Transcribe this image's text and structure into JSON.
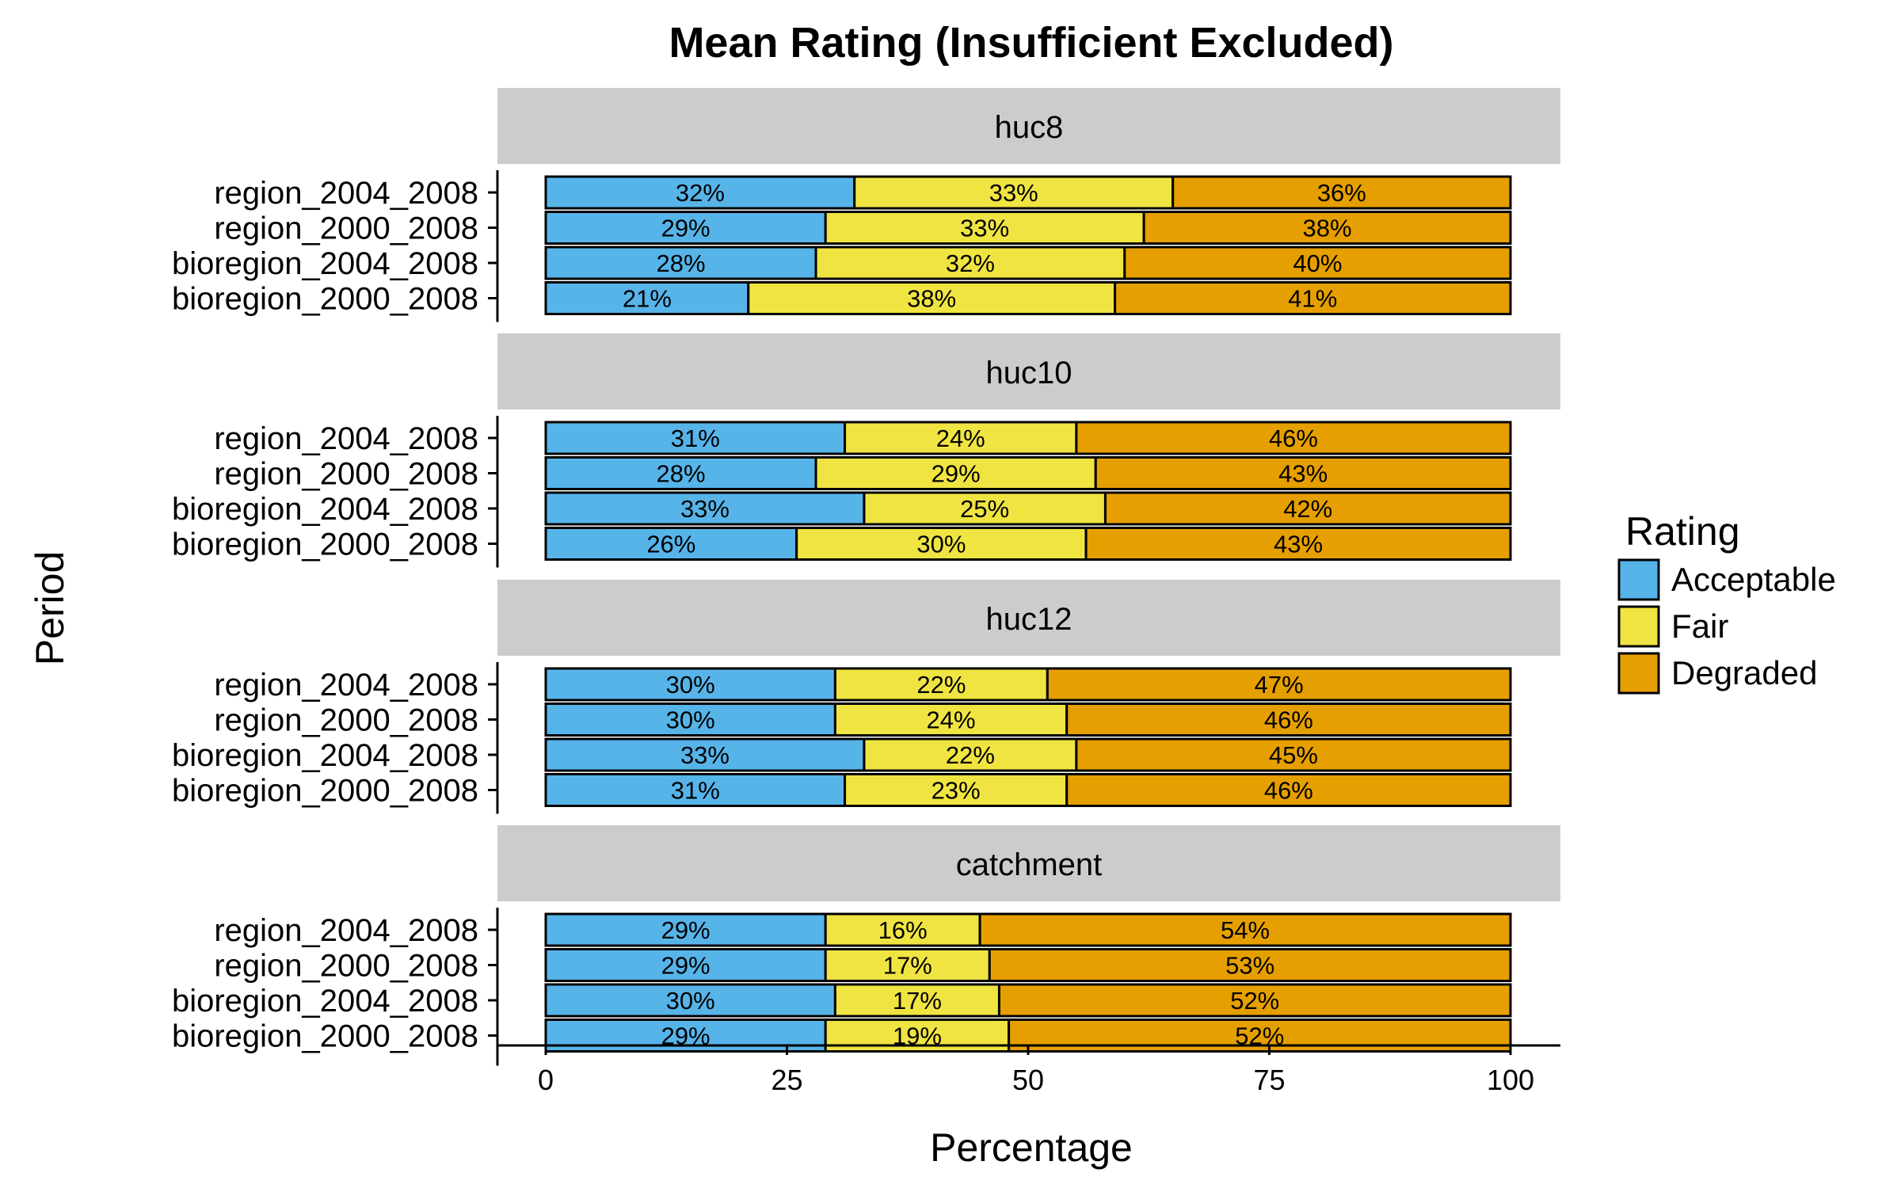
{
  "chart_data": {
    "type": "bar",
    "orientation": "horizontal",
    "stacked": true,
    "title": "Mean Rating (Insufficient Excluded)",
    "xlabel": "Percentage",
    "ylabel": "Period",
    "xlim": [
      0,
      100
    ],
    "xticks": [
      "0",
      "25",
      "50",
      "75",
      "100"
    ],
    "grid": false,
    "legend": {
      "title": "Rating",
      "position": "right",
      "entries": [
        "Acceptable",
        "Fair",
        "Degraded"
      ]
    },
    "colors": {
      "Acceptable": "#56B4E9",
      "Fair": "#F0E442",
      "Degraded": "#E69F00",
      "strip": "#cccccc"
    },
    "categories": [
      "region_2004_2008",
      "region_2000_2008",
      "bioregion_2004_2008",
      "bioregion_2000_2008"
    ],
    "panels": [
      {
        "name": "huc8",
        "series": [
          {
            "name": "Acceptable",
            "values": [
              32,
              29,
              28,
              21
            ],
            "labels": [
              "32%",
              "29%",
              "28%",
              "21%"
            ]
          },
          {
            "name": "Fair",
            "values": [
              33,
              33,
              32,
              38
            ],
            "labels": [
              "33%",
              "33%",
              "32%",
              "38%"
            ]
          },
          {
            "name": "Degraded",
            "values": [
              36,
              38,
              40,
              41
            ],
            "labels": [
              "36%",
              "38%",
              "40%",
              "41%"
            ]
          }
        ]
      },
      {
        "name": "huc10",
        "series": [
          {
            "name": "Acceptable",
            "values": [
              31,
              28,
              33,
              26
            ],
            "labels": [
              "31%",
              "28%",
              "33%",
              "26%"
            ]
          },
          {
            "name": "Fair",
            "values": [
              24,
              29,
              25,
              30
            ],
            "labels": [
              "24%",
              "29%",
              "25%",
              "30%"
            ]
          },
          {
            "name": "Degraded",
            "values": [
              46,
              43,
              42,
              43
            ],
            "labels": [
              "46%",
              "43%",
              "42%",
              "43%"
            ]
          }
        ]
      },
      {
        "name": "huc12",
        "series": [
          {
            "name": "Acceptable",
            "values": [
              30,
              30,
              33,
              31
            ],
            "labels": [
              "30%",
              "30%",
              "33%",
              "31%"
            ]
          },
          {
            "name": "Fair",
            "values": [
              22,
              24,
              22,
              23
            ],
            "labels": [
              "22%",
              "24%",
              "22%",
              "23%"
            ]
          },
          {
            "name": "Degraded",
            "values": [
              47,
              46,
              45,
              46
            ],
            "labels": [
              "47%",
              "46%",
              "45%",
              "46%"
            ]
          }
        ]
      },
      {
        "name": "catchment",
        "series": [
          {
            "name": "Acceptable",
            "values": [
              29,
              29,
              30,
              29
            ],
            "labels": [
              "29%",
              "29%",
              "30%",
              "29%"
            ]
          },
          {
            "name": "Fair",
            "values": [
              16,
              17,
              17,
              19
            ],
            "labels": [
              "16%",
              "17%",
              "17%",
              "19%"
            ]
          },
          {
            "name": "Degraded",
            "values": [
              54,
              53,
              52,
              52
            ],
            "labels": [
              "54%",
              "53%",
              "52%",
              "52%"
            ]
          }
        ]
      }
    ]
  }
}
